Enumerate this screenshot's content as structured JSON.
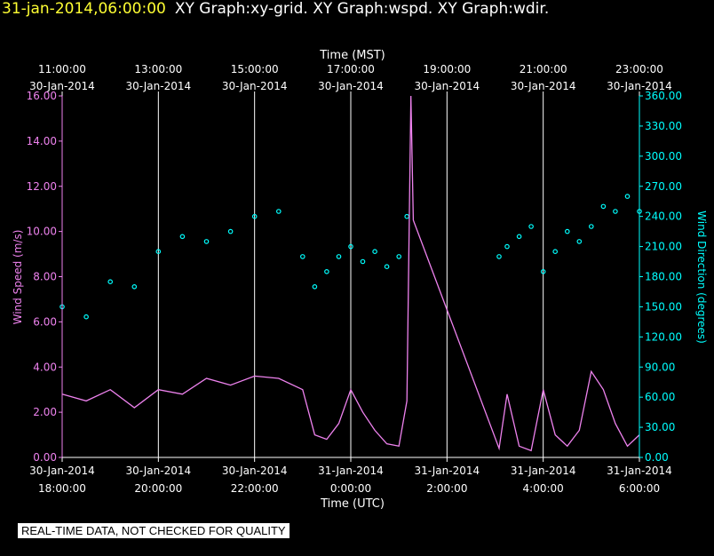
{
  "header": {
    "timestamp": "31-jan-2014,06:00:00",
    "titles": "XY Graph:xy-grid.  XY Graph:wspd.  XY Graph:wdir."
  },
  "qc_note": "REAL-TIME DATA, NOT CHECKED FOR QUALITY",
  "colors": {
    "wspd": "#ee82ee",
    "wdir": "#00ffff",
    "grid": "#ffffff",
    "header_ts": "#ffff33"
  },
  "chart_data": {
    "type": "scatter",
    "top_axis_title": "Time (MST)",
    "bottom_axis_title": "Time (UTC)",
    "left_axis_title": "Wind Speed (m/s)",
    "right_axis_title": "Wind Direction (degrees)",
    "top_ticks": [
      {
        "time": "11:00:00",
        "date": "30-Jan-2014"
      },
      {
        "time": "13:00:00",
        "date": "30-Jan-2014"
      },
      {
        "time": "15:00:00",
        "date": "30-Jan-2014"
      },
      {
        "time": "17:00:00",
        "date": "30-Jan-2014"
      },
      {
        "time": "19:00:00",
        "date": "30-Jan-2014"
      },
      {
        "time": "21:00:00",
        "date": "30-Jan-2014"
      },
      {
        "time": "23:00:00",
        "date": "30-Jan-2014"
      }
    ],
    "bottom_ticks": [
      {
        "date": "30-Jan-2014",
        "time": "18:00:00"
      },
      {
        "date": "30-Jan-2014",
        "time": "20:00:00"
      },
      {
        "date": "30-Jan-2014",
        "time": "22:00:00"
      },
      {
        "date": "31-Jan-2014",
        "time": "0:00:00"
      },
      {
        "date": "31-Jan-2014",
        "time": "2:00:00"
      },
      {
        "date": "31-Jan-2014",
        "time": "4:00:00"
      },
      {
        "date": "31-Jan-2014",
        "time": "6:00:00"
      }
    ],
    "left_ticks": [
      "0.00",
      "2.00",
      "4.00",
      "6.00",
      "8.00",
      "10.00",
      "12.00",
      "14.00",
      "16.00"
    ],
    "right_ticks": [
      "0.00",
      "30.00",
      "60.00",
      "90.00",
      "120.00",
      "150.00",
      "180.00",
      "210.00",
      "240.00",
      "270.00",
      "300.00",
      "330.00",
      "360.00"
    ],
    "x_range_utc": [
      "2014-01-30 18:00",
      "2014-01-31 06:00"
    ],
    "y_left_range": [
      0,
      16
    ],
    "y_right_range": [
      0,
      360
    ],
    "grid": true,
    "series": [
      {
        "name": "wspd",
        "axis": "left",
        "style": "line",
        "x_utc": [
          "2014-01-30 18:00",
          "2014-01-30 18:30",
          "2014-01-30 19:00",
          "2014-01-30 19:30",
          "2014-01-30 20:00",
          "2014-01-30 20:30",
          "2014-01-30 21:00",
          "2014-01-30 21:30",
          "2014-01-30 22:00",
          "2014-01-30 22:30",
          "2014-01-30 23:00",
          "2014-01-30 23:15",
          "2014-01-30 23:30",
          "2014-01-30 23:45",
          "2014-01-31 00:00",
          "2014-01-31 00:15",
          "2014-01-31 00:30",
          "2014-01-31 00:45",
          "2014-01-31 01:00",
          "2014-01-31 01:10",
          "2014-01-31 01:15",
          "2014-01-31 01:18",
          "2014-01-31 03:05",
          "2014-01-31 03:15",
          "2014-01-31 03:30",
          "2014-01-31 03:45",
          "2014-01-31 04:00",
          "2014-01-31 04:15",
          "2014-01-31 04:30",
          "2014-01-31 04:45",
          "2014-01-31 05:00",
          "2014-01-31 05:15",
          "2014-01-31 05:30",
          "2014-01-31 05:45",
          "2014-01-31 06:00"
        ],
        "y": [
          2.8,
          2.5,
          3.0,
          2.2,
          3.0,
          2.8,
          3.5,
          3.2,
          3.6,
          3.5,
          3.0,
          1.0,
          0.8,
          1.5,
          3.0,
          2.0,
          1.2,
          0.6,
          0.5,
          2.5,
          16.0,
          10.5,
          0.4,
          2.8,
          0.5,
          0.3,
          3.0,
          1.0,
          0.5,
          1.2,
          3.8,
          3.0,
          1.5,
          0.5,
          1.0
        ]
      },
      {
        "name": "wdir",
        "axis": "right",
        "style": "points",
        "x_utc": [
          "2014-01-30 18:00",
          "2014-01-30 18:30",
          "2014-01-30 19:00",
          "2014-01-30 19:30",
          "2014-01-30 20:00",
          "2014-01-30 20:30",
          "2014-01-30 21:00",
          "2014-01-30 21:30",
          "2014-01-30 22:00",
          "2014-01-30 22:30",
          "2014-01-30 23:00",
          "2014-01-30 23:15",
          "2014-01-30 23:30",
          "2014-01-30 23:45",
          "2014-01-31 00:00",
          "2014-01-31 00:15",
          "2014-01-31 00:30",
          "2014-01-31 00:45",
          "2014-01-31 01:00",
          "2014-01-31 01:10",
          "2014-01-31 03:05",
          "2014-01-31 03:15",
          "2014-01-31 03:30",
          "2014-01-31 03:45",
          "2014-01-31 04:00",
          "2014-01-31 04:15",
          "2014-01-31 04:30",
          "2014-01-31 04:45",
          "2014-01-31 05:00",
          "2014-01-31 05:15",
          "2014-01-31 05:30",
          "2014-01-31 05:45",
          "2014-01-31 06:00"
        ],
        "y": [
          150,
          140,
          175,
          170,
          205,
          220,
          215,
          225,
          240,
          245,
          200,
          170,
          185,
          200,
          210,
          195,
          205,
          190,
          200,
          240,
          200,
          210,
          220,
          230,
          185,
          205,
          225,
          215,
          230,
          250,
          245,
          260,
          245
        ]
      }
    ]
  }
}
